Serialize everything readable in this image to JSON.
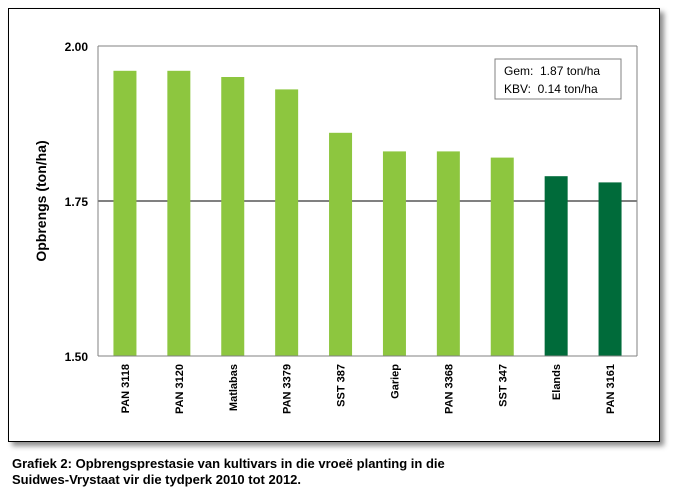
{
  "chart_data": {
    "type": "bar",
    "categories": [
      "PAN 3118",
      "PAN 3120",
      "Matlabas",
      "PAN 3379",
      "SST 387",
      "Gariep",
      "PAN 3368",
      "SST 347",
      "Elands",
      "PAN 3161"
    ],
    "values": [
      1.96,
      1.96,
      1.95,
      1.93,
      1.86,
      1.83,
      1.83,
      1.82,
      1.79,
      1.78
    ],
    "bar_colors": [
      "#8dc63f",
      "#8dc63f",
      "#8dc63f",
      "#8dc63f",
      "#8dc63f",
      "#8dc63f",
      "#8dc63f",
      "#8dc63f",
      "#006b3a",
      "#006b3a"
    ],
    "ylabel": "Opbrengs (ton/ha)",
    "ylim": [
      1.5,
      2.0
    ],
    "yticks": [
      "1.50",
      "1.75",
      "2.00"
    ],
    "grid": true,
    "legend_box": {
      "placement": "top-right",
      "lines": [
        "Gem:  1.87 ton/ha",
        "KBV:  0.14 ton/ha"
      ]
    }
  },
  "caption": {
    "line1": "Grafiek 2: Opbrengsprestasie van kultivars in die vroeë planting in die",
    "line2": "Suidwes-Vrystaat vir die tydperk 2010 tot 2012."
  }
}
